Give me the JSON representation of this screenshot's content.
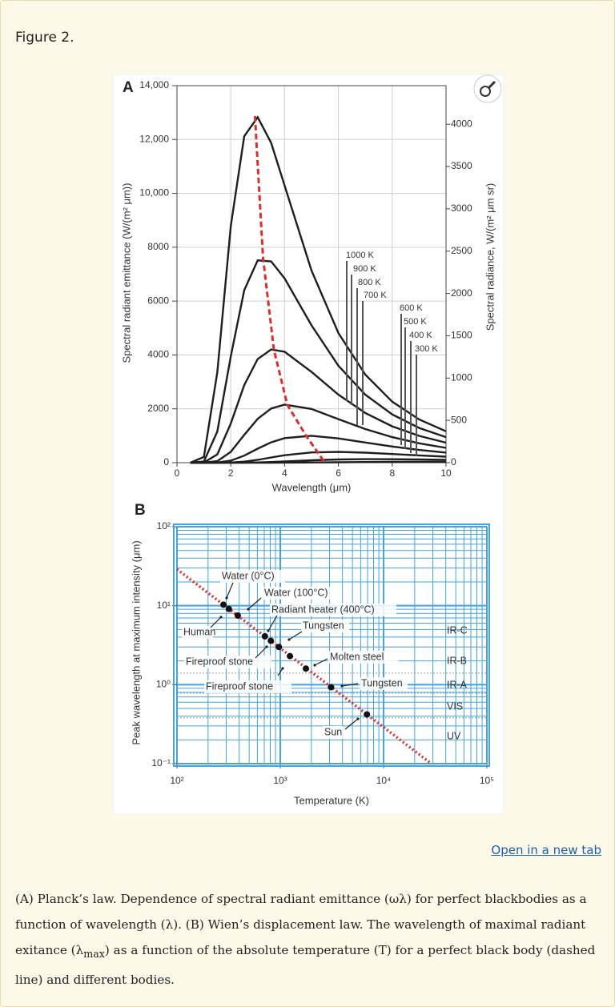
{
  "figure_label": "Figure 2.",
  "chart_data": [
    {
      "type": "line",
      "panel_label": "A",
      "x_label": "Wavelength (μm)",
      "y_label": "Spectral radiant emittance (W/(m² μm))",
      "y2_label": "Spectral radiance, W/(m² μm sr)",
      "xlim": [
        0,
        10
      ],
      "xticks": [
        0,
        2,
        4,
        6,
        8,
        10
      ],
      "ylim": [
        0,
        14000
      ],
      "yticks": [
        0,
        2000,
        4000,
        6000,
        8000,
        {
          "value": 10000,
          "label": "10,000"
        },
        {
          "value": 12000,
          "label": "12,000"
        },
        {
          "value": 14000,
          "label": "14,000"
        }
      ],
      "y2lim": [
        0,
        4456
      ],
      "y2ticks": [
        0,
        500,
        1000,
        1500,
        2000,
        2500,
        3000,
        3500,
        4000
      ],
      "grid": true,
      "x": [
        0.5,
        1,
        1.5,
        2,
        2.5,
        3,
        3.5,
        4,
        5,
        6,
        7,
        8,
        9,
        10
      ],
      "series": [
        {
          "name": "1000 K",
          "color": "#1e1e1e",
          "values": [
            0,
            211,
            3363,
            8790,
            12120,
            12830,
            11875,
            10290,
            7134,
            4812,
            3269,
            2266,
            1604,
            1164
          ]
        },
        {
          "name": "900 K",
          "color": "#1e1e1e",
          "values": [
            0,
            43,
            1158,
            3946,
            6406,
            7512,
            7476,
            6843,
            5102,
            3599,
            2524,
            1793,
            1291,
            947
          ]
        },
        {
          "name": "800 K",
          "color": "#1e1e1e",
          "values": [
            0,
            6,
            306,
            1457,
            2880,
            3850,
            4204,
            4120,
            3372,
            2527,
            1846,
            1348,
            995,
            742
          ]
        },
        {
          "name": "700 K",
          "color": "#1e1e1e",
          "values": [
            0,
            0,
            55,
            402,
            1030,
            1630,
            2013,
            2156,
            1995,
            1617,
            1248,
            947,
            718,
            549
          ]
        },
        {
          "name": "600 K",
          "color": "#1e1e1e",
          "values": [
            0,
            0,
            6,
            73,
            262,
            520,
            755,
            913,
            998,
            901,
            748,
            600,
            474,
            374
          ]
        },
        {
          "name": "500 K",
          "color": "#1e1e1e",
          "values": [
            0,
            0,
            0,
            7,
            38,
            105,
            192,
            275,
            380,
            401,
            371,
            322,
            270,
            223
          ]
        },
        {
          "name": "400 K",
          "color": "#1e1e1e",
          "values": [
            0,
            0,
            0,
            0,
            2,
            10,
            25,
            46,
            90,
            120,
            131,
            129,
            119,
            105
          ]
        },
        {
          "name": "300 K",
          "color": "#1e1e1e",
          "values": [
            0,
            0,
            0,
            0,
            0,
            0,
            0,
            2,
            8,
            16,
            24,
            29,
            31,
            31
          ]
        }
      ],
      "peak_line": {
        "color": "#d9302c",
        "x": [
          2.9,
          3.2,
          3.6,
          4.1,
          4.8,
          5.5
        ],
        "y": [
          12870,
          7600,
          4200,
          2150,
          1000,
          0
        ]
      }
    },
    {
      "type": "scatter",
      "panel_label": "B",
      "x_label": "Temperature (K)",
      "y_label": "Peak wavelength at maximum intensity (μm)",
      "log_x": true,
      "log_y": true,
      "grid": true,
      "grid_color": "#44a2dc",
      "xlim": [
        100,
        100000
      ],
      "xticks": [
        {
          "value": 100,
          "label": "10²"
        },
        {
          "value": 1000,
          "label": "10³"
        },
        {
          "value": 10000,
          "label": "10⁴"
        },
        {
          "value": 100000,
          "label": "10⁵"
        }
      ],
      "ylim": [
        0.1,
        100
      ],
      "yticks": [
        {
          "value": 0.1,
          "label": "10⁻¹"
        },
        {
          "value": 1,
          "label": "10⁰"
        },
        {
          "value": 10,
          "label": "10¹"
        },
        {
          "value": 100,
          "label": "10²"
        }
      ],
      "point_color": "#111111",
      "x": [
        282,
        318,
        388,
        710,
        810,
        970,
        1240,
        1770,
        3100,
        6900
      ],
      "values": [
        10.3,
        9.1,
        7.5,
        4.1,
        3.6,
        3.0,
        2.3,
        1.6,
        0.93,
        0.42
      ],
      "wien_line": {
        "color": "#e0302a",
        "x": [
          100,
          28980
        ],
        "y": [
          28.98,
          0.1
        ]
      },
      "annotations": [
        "Water (0°C)",
        "Water (100°C)",
        "Radiant heater (400°C)",
        "Human",
        "Tungsten",
        "Fireproof stone",
        "Molten steel",
        "Fireproof stone",
        "Tungsten",
        "Sun"
      ],
      "bands": {
        "labels": [
          "IR-C",
          "IR-B",
          "IR-A",
          "VIS",
          "UV"
        ],
        "boundaries": [
          3,
          1.4,
          0.78,
          0.38
        ]
      }
    }
  ],
  "link": "Open in a new tab",
  "caption": {
    "before": "(A) Planck’s law. Dependence of spectral radiant emittance (ωλ) for perfect blackbodies as a function of wavelength (λ). (B) Wien’s displacement law. The wavelength of maximal radiant exitance (λ",
    "subscript": "max",
    "after": ") as a function of the absolute temperature (T) for a perfect black body (dashed line) and different bodies."
  }
}
